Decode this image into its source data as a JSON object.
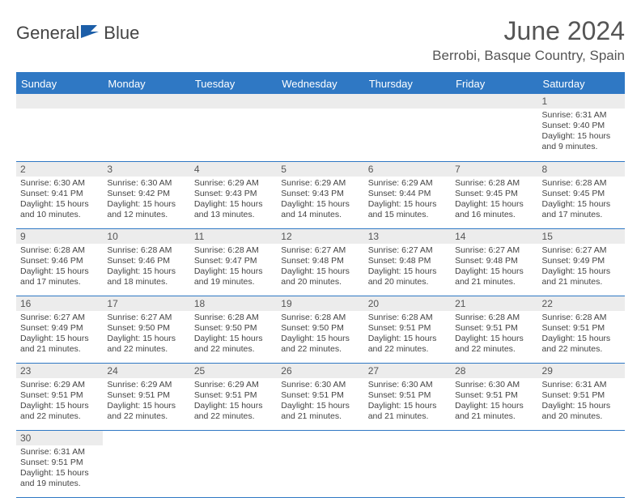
{
  "brand": {
    "part1": "General",
    "part2": "Blue"
  },
  "title": "June 2024",
  "subtitle": "Berrobi, Basque Country, Spain",
  "colors": {
    "header_bg": "#2f78c4",
    "header_text": "#ffffff",
    "daynum_bg": "#ececec",
    "row_border": "#2f78c4",
    "text": "#444444",
    "background": "#ffffff"
  },
  "typography": {
    "title_fontsize": 32,
    "subtitle_fontsize": 17,
    "dayheader_fontsize": 13,
    "cell_fontsize": 10.5
  },
  "day_headers": [
    "Sunday",
    "Monday",
    "Tuesday",
    "Wednesday",
    "Thursday",
    "Friday",
    "Saturday"
  ],
  "weeks": [
    [
      {
        "blank": true
      },
      {
        "blank": true
      },
      {
        "blank": true
      },
      {
        "blank": true
      },
      {
        "blank": true
      },
      {
        "blank": true
      },
      {
        "num": "1",
        "sunrise": "Sunrise: 6:31 AM",
        "sunset": "Sunset: 9:40 PM",
        "daylight": "Daylight: 15 hours and 9 minutes."
      }
    ],
    [
      {
        "num": "2",
        "sunrise": "Sunrise: 6:30 AM",
        "sunset": "Sunset: 9:41 PM",
        "daylight": "Daylight: 15 hours and 10 minutes."
      },
      {
        "num": "3",
        "sunrise": "Sunrise: 6:30 AM",
        "sunset": "Sunset: 9:42 PM",
        "daylight": "Daylight: 15 hours and 12 minutes."
      },
      {
        "num": "4",
        "sunrise": "Sunrise: 6:29 AM",
        "sunset": "Sunset: 9:43 PM",
        "daylight": "Daylight: 15 hours and 13 minutes."
      },
      {
        "num": "5",
        "sunrise": "Sunrise: 6:29 AM",
        "sunset": "Sunset: 9:43 PM",
        "daylight": "Daylight: 15 hours and 14 minutes."
      },
      {
        "num": "6",
        "sunrise": "Sunrise: 6:29 AM",
        "sunset": "Sunset: 9:44 PM",
        "daylight": "Daylight: 15 hours and 15 minutes."
      },
      {
        "num": "7",
        "sunrise": "Sunrise: 6:28 AM",
        "sunset": "Sunset: 9:45 PM",
        "daylight": "Daylight: 15 hours and 16 minutes."
      },
      {
        "num": "8",
        "sunrise": "Sunrise: 6:28 AM",
        "sunset": "Sunset: 9:45 PM",
        "daylight": "Daylight: 15 hours and 17 minutes."
      }
    ],
    [
      {
        "num": "9",
        "sunrise": "Sunrise: 6:28 AM",
        "sunset": "Sunset: 9:46 PM",
        "daylight": "Daylight: 15 hours and 17 minutes."
      },
      {
        "num": "10",
        "sunrise": "Sunrise: 6:28 AM",
        "sunset": "Sunset: 9:46 PM",
        "daylight": "Daylight: 15 hours and 18 minutes."
      },
      {
        "num": "11",
        "sunrise": "Sunrise: 6:28 AM",
        "sunset": "Sunset: 9:47 PM",
        "daylight": "Daylight: 15 hours and 19 minutes."
      },
      {
        "num": "12",
        "sunrise": "Sunrise: 6:27 AM",
        "sunset": "Sunset: 9:48 PM",
        "daylight": "Daylight: 15 hours and 20 minutes."
      },
      {
        "num": "13",
        "sunrise": "Sunrise: 6:27 AM",
        "sunset": "Sunset: 9:48 PM",
        "daylight": "Daylight: 15 hours and 20 minutes."
      },
      {
        "num": "14",
        "sunrise": "Sunrise: 6:27 AM",
        "sunset": "Sunset: 9:48 PM",
        "daylight": "Daylight: 15 hours and 21 minutes."
      },
      {
        "num": "15",
        "sunrise": "Sunrise: 6:27 AM",
        "sunset": "Sunset: 9:49 PM",
        "daylight": "Daylight: 15 hours and 21 minutes."
      }
    ],
    [
      {
        "num": "16",
        "sunrise": "Sunrise: 6:27 AM",
        "sunset": "Sunset: 9:49 PM",
        "daylight": "Daylight: 15 hours and 21 minutes."
      },
      {
        "num": "17",
        "sunrise": "Sunrise: 6:27 AM",
        "sunset": "Sunset: 9:50 PM",
        "daylight": "Daylight: 15 hours and 22 minutes."
      },
      {
        "num": "18",
        "sunrise": "Sunrise: 6:28 AM",
        "sunset": "Sunset: 9:50 PM",
        "daylight": "Daylight: 15 hours and 22 minutes."
      },
      {
        "num": "19",
        "sunrise": "Sunrise: 6:28 AM",
        "sunset": "Sunset: 9:50 PM",
        "daylight": "Daylight: 15 hours and 22 minutes."
      },
      {
        "num": "20",
        "sunrise": "Sunrise: 6:28 AM",
        "sunset": "Sunset: 9:51 PM",
        "daylight": "Daylight: 15 hours and 22 minutes."
      },
      {
        "num": "21",
        "sunrise": "Sunrise: 6:28 AM",
        "sunset": "Sunset: 9:51 PM",
        "daylight": "Daylight: 15 hours and 22 minutes."
      },
      {
        "num": "22",
        "sunrise": "Sunrise: 6:28 AM",
        "sunset": "Sunset: 9:51 PM",
        "daylight": "Daylight: 15 hours and 22 minutes."
      }
    ],
    [
      {
        "num": "23",
        "sunrise": "Sunrise: 6:29 AM",
        "sunset": "Sunset: 9:51 PM",
        "daylight": "Daylight: 15 hours and 22 minutes."
      },
      {
        "num": "24",
        "sunrise": "Sunrise: 6:29 AM",
        "sunset": "Sunset: 9:51 PM",
        "daylight": "Daylight: 15 hours and 22 minutes."
      },
      {
        "num": "25",
        "sunrise": "Sunrise: 6:29 AM",
        "sunset": "Sunset: 9:51 PM",
        "daylight": "Daylight: 15 hours and 22 minutes."
      },
      {
        "num": "26",
        "sunrise": "Sunrise: 6:30 AM",
        "sunset": "Sunset: 9:51 PM",
        "daylight": "Daylight: 15 hours and 21 minutes."
      },
      {
        "num": "27",
        "sunrise": "Sunrise: 6:30 AM",
        "sunset": "Sunset: 9:51 PM",
        "daylight": "Daylight: 15 hours and 21 minutes."
      },
      {
        "num": "28",
        "sunrise": "Sunrise: 6:30 AM",
        "sunset": "Sunset: 9:51 PM",
        "daylight": "Daylight: 15 hours and 21 minutes."
      },
      {
        "num": "29",
        "sunrise": "Sunrise: 6:31 AM",
        "sunset": "Sunset: 9:51 PM",
        "daylight": "Daylight: 15 hours and 20 minutes."
      }
    ],
    [
      {
        "num": "30",
        "sunrise": "Sunrise: 6:31 AM",
        "sunset": "Sunset: 9:51 PM",
        "daylight": "Daylight: 15 hours and 19 minutes."
      },
      {
        "trailing": true
      },
      {
        "trailing": true
      },
      {
        "trailing": true
      },
      {
        "trailing": true
      },
      {
        "trailing": true
      },
      {
        "trailing": true
      }
    ]
  ]
}
